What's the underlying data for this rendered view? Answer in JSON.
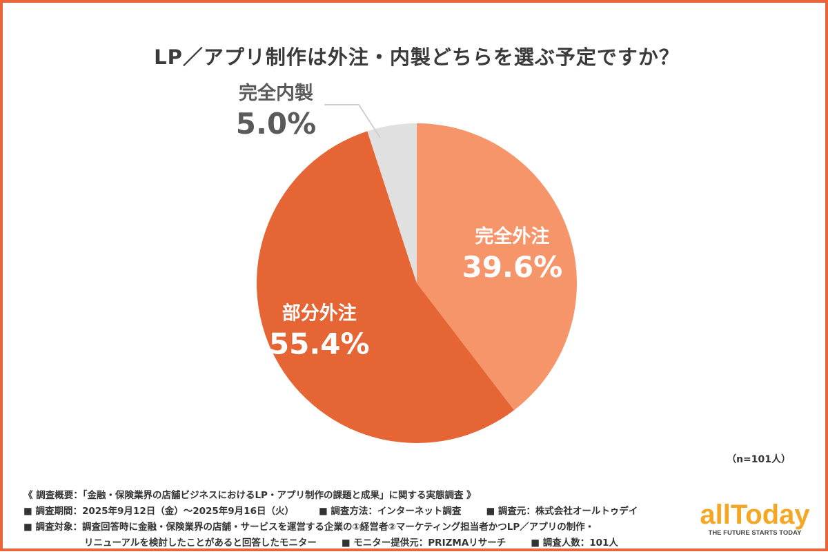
{
  "title": "LP／アプリ制作は外注・内製どちらを選ぶ予定ですか？",
  "n_note": "（n=101人）",
  "survey": {
    "header": "《 調査概要：「金融・保険業界の店舗ビジネスにおけるLP・アプリ制作の課題と成果」に関する実態調査 》",
    "period": "■ 調査期間：2025年9月12日（金）〜2025年9月16日（火）",
    "method": "■ 調査方法：インターネット調査",
    "source": "■ 調査元：株式会社オールトゥデイ",
    "target_line1": "■ 調査対象：調査回答時に金融・保険業界の店舗・サービスを運営する企業の①経営者②マーケティング担当者かつLP／アプリの制作・",
    "target_line2": "リニューアルを検討したことがあると回答したモニター",
    "provider": "■ モニター提供元：PRIZMAリサーチ",
    "count": "■ 調査人数：101人"
  },
  "logo": {
    "text": "allToday",
    "tagline": "THE FUTURE STARTS TODAY",
    "color": "#f5a623"
  },
  "chart_data": {
    "type": "pie",
    "title": "LP／アプリ制作は外注・内製どちらを選ぶ予定ですか？",
    "start_angle_deg": 0,
    "direction": "clockwise",
    "slices": [
      {
        "label": "完全外注",
        "value": 39.6,
        "display": "39.6%",
        "color": "#f7956a",
        "label_color": "#ffffff"
      },
      {
        "label": "部分外注",
        "value": 55.4,
        "display": "55.4%",
        "color": "#e56534",
        "label_color": "#ffffff"
      },
      {
        "label": "完全内製",
        "value": 5.0,
        "display": "5.0%",
        "color": "#e0e0e0",
        "label_color": "#5a5a5a"
      }
    ]
  }
}
